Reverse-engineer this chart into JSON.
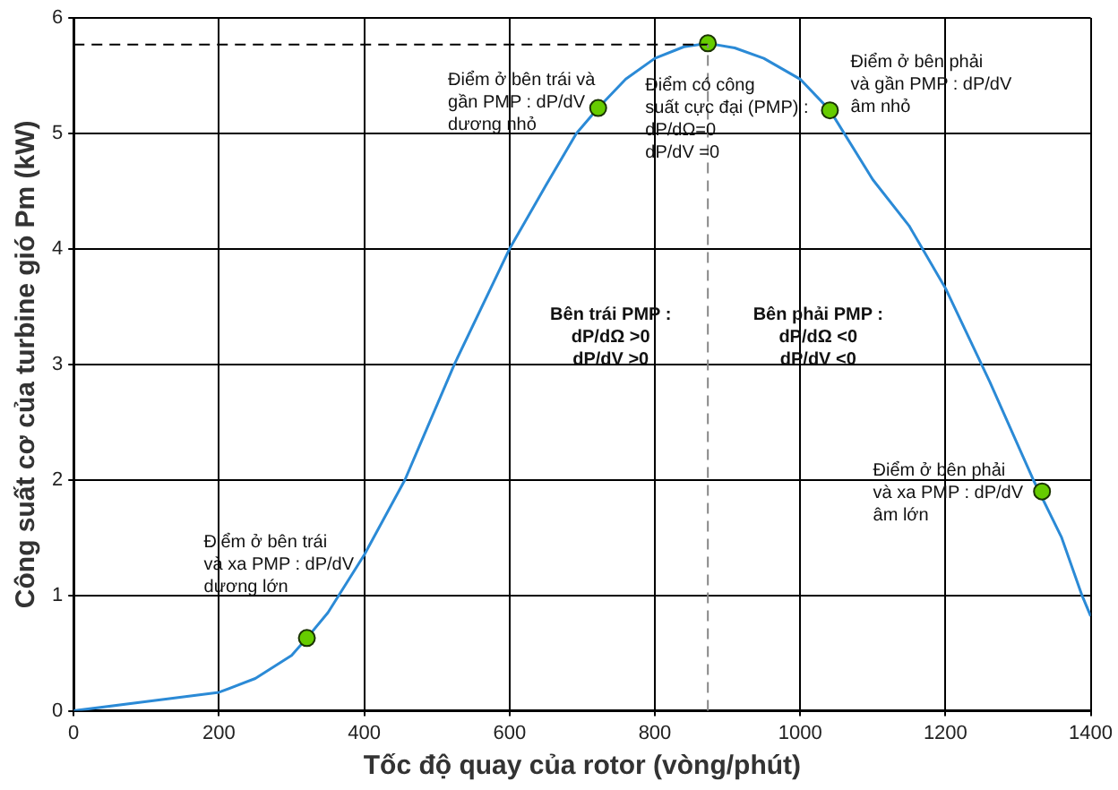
{
  "chart_data": {
    "type": "line",
    "xlabel": "Tốc độ quay của rotor (vòng/phút)",
    "ylabel": "Công suất cơ của turbine gió Pm (kW)",
    "xlim": [
      0,
      1400
    ],
    "xticks": [
      0,
      200,
      400,
      600,
      800,
      1000,
      1200,
      1400
    ],
    "ylim": [
      0,
      6
    ],
    "yticks": [
      0,
      1,
      2,
      3,
      4,
      5,
      6
    ],
    "grid": true,
    "legend": false,
    "series": [
      {
        "color": "#2b8ad6",
        "marker": "none",
        "x": [
          0,
          100,
          200,
          250,
          300,
          321,
          350,
          400,
          456,
          524,
          600,
          650,
          692,
          722,
          760,
          800,
          840,
          873,
          910,
          950,
          1000,
          1041,
          1100,
          1150,
          1200,
          1261,
          1321,
          1360,
          1388,
          1400
        ],
        "values": [
          0,
          0.08,
          0.16,
          0.28,
          0.48,
          0.63,
          0.85,
          1.35,
          2,
          3,
          4,
          4.55,
          5,
          5.22,
          5.47,
          5.65,
          5.75,
          5.78,
          5.74,
          5.65,
          5.47,
          5.2,
          4.6,
          4.2,
          3.66,
          2.85,
          2,
          1.5,
          1,
          0.82
        ]
      },
      {
        "type": "scatter",
        "color": "#66cc00",
        "marker": "circle",
        "x": [
          321,
          722,
          873,
          1041,
          1333
        ],
        "values": [
          0.63,
          5.22,
          5.78,
          5.2,
          1.9
        ]
      }
    ],
    "ref_lines": [
      {
        "axis": "y",
        "value": 5.77,
        "color": "#000000",
        "line_style": "dashed"
      },
      {
        "axis": "x",
        "value": 873,
        "color": "#888888",
        "line_style": "dashed"
      }
    ],
    "annotations": [
      "Điểm ở bên trái và\ngần PMP : dP/dV\ndương nhỏ",
      "Điểm có công\nsuất cực đại (PMP) :\ndP/dΩ=0\ndP/dV =0",
      "Điểm ở bên phải\nvà gần PMP : dP/dV\nâm nhỏ",
      "Bên trái PMP :\ndP/dΩ >0\ndP/dV >0",
      "Bên phải PMP :\ndP/dΩ <0\ndP/dV <0",
      "Điểm ở bên trái\nvà xa PMP : dP/dV\ndương lớn",
      "Điểm ở bên phải\nvà xa PMP : dP/dV\nâm lớn"
    ]
  }
}
